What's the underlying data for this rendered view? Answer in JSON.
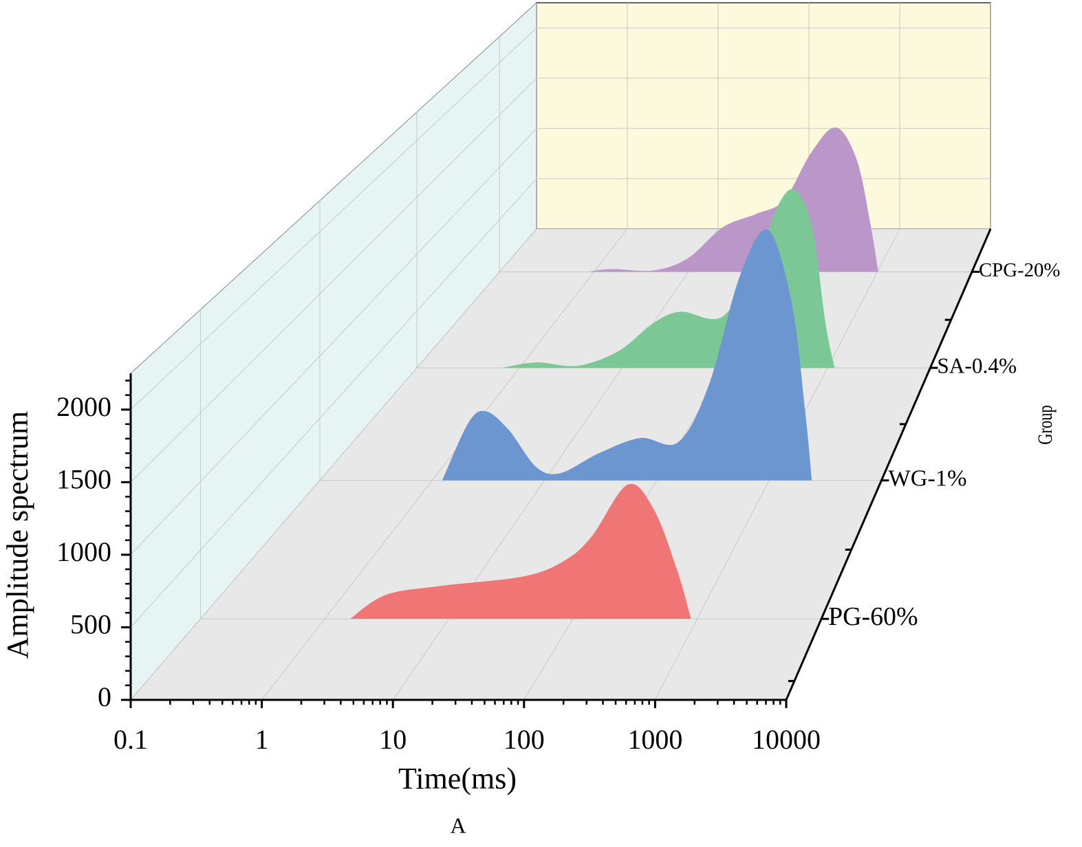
{
  "chart_data": {
    "type": "area3d",
    "x_label": "Time(ms)",
    "y_label": "Amplitude spectrum",
    "z_label": "Group",
    "caption": "A",
    "xscale": "log",
    "xlim": [
      0.1,
      10000
    ],
    "xticks": [
      0.1,
      1,
      10,
      100,
      1000,
      10000
    ],
    "ylim": [
      0,
      2250
    ],
    "yticks": [
      0,
      500,
      1000,
      1500,
      2000
    ],
    "grid": true,
    "series": [
      {
        "name": "PG-60%",
        "color": "#f07575",
        "x": [
          1.6,
          3.1,
          8.5,
          40,
          85,
          141,
          275,
          447,
          692,
          891
        ],
        "values": [
          0,
          174,
          239,
          309,
          423,
          598,
          976,
          797,
          349,
          0
        ]
      },
      {
        "name": "WG-1%",
        "color": "#6b96cf",
        "x": [
          1.23,
          2.1,
          3.0,
          4.8,
          8.5,
          14,
          30,
          71,
          155,
          290,
          550,
          977,
          1590,
          2100,
          2400
        ],
        "values": [
          0,
          462,
          556,
          407,
          105,
          60,
          215,
          341,
          308,
          765,
          1646,
          2014,
          1425,
          545,
          0
        ]
      },
      {
        "name": "SA-0.4%",
        "color": "#7bc796",
        "x": [
          0.68,
          1.47,
          3.7,
          9.3,
          20,
          37,
          95,
          204,
          324,
          478,
          708,
          955,
          1170
        ],
        "values": [
          0,
          48,
          18,
          150,
          392,
          494,
          452,
          934,
          1416,
          1566,
          1235,
          392,
          0
        ]
      },
      {
        "name": "CPG-20%",
        "color": "#ba97c8",
        "x": [
          0.87,
          1.55,
          4.3,
          9.9,
          23,
          53,
          103,
          200,
          363,
          600,
          830,
          1020
        ],
        "values": [
          0,
          26,
          13,
          131,
          425,
          556,
          687,
          1144,
          1380,
          1079,
          490,
          0
        ]
      }
    ]
  }
}
